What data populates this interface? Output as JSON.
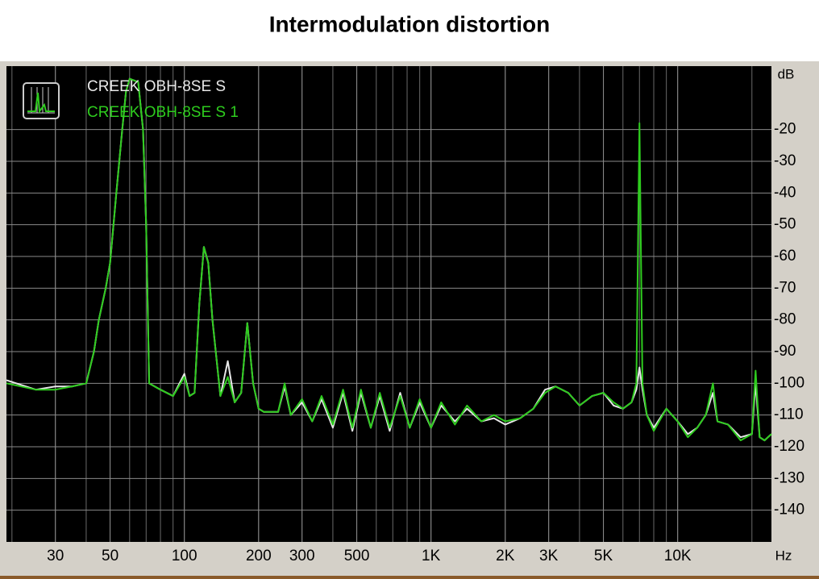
{
  "chart_data": {
    "type": "line",
    "title": "Intermodulation distortion",
    "x_label": "Hz",
    "y_label": "dB",
    "xscale": "log",
    "xlim": [
      19,
      24000
    ],
    "ylim": [
      -150,
      0
    ],
    "xticks": [
      30,
      50,
      100,
      200,
      300,
      500,
      {
        "value": 1000,
        "label": "1K"
      },
      {
        "value": 2000,
        "label": "2K"
      },
      {
        "value": 3000,
        "label": "3K"
      },
      {
        "value": 5000,
        "label": "5K"
      },
      {
        "value": 10000,
        "label": "10K"
      }
    ],
    "yticks": [
      -20,
      -30,
      -40,
      -50,
      -60,
      -70,
      -80,
      -90,
      -100,
      -110,
      -120,
      -130,
      -140
    ],
    "grid": true,
    "legend": "upper left",
    "x": [
      19,
      25,
      30,
      35,
      40,
      43,
      45,
      48,
      50,
      53,
      56,
      58,
      60,
      65,
      68,
      70,
      72,
      80,
      90,
      100,
      105,
      110,
      115,
      120,
      125,
      130,
      140,
      150,
      160,
      170,
      180,
      190,
      200,
      210,
      240,
      255,
      270,
      300,
      330,
      360,
      400,
      440,
      480,
      520,
      570,
      620,
      680,
      750,
      820,
      900,
      1000,
      1100,
      1250,
      1400,
      1600,
      1800,
      2000,
      2300,
      2600,
      2900,
      3200,
      3600,
      4000,
      4500,
      5000,
      5500,
      6000,
      6500,
      6800,
      7000,
      7200,
      7500,
      8000,
      9000,
      10000,
      11000,
      12000,
      13000,
      13900,
      14500,
      16000,
      18000,
      20000,
      20700,
      21500,
      22500,
      24000
    ],
    "series": [
      {
        "name": "CREEK OBH-8SE S",
        "color": "#e8e8e8",
        "values": [
          -99,
          -102,
          -101,
          -101,
          -100,
          -90,
          -80,
          -70,
          -62,
          -40,
          -20,
          -8,
          -4,
          -5,
          -20,
          -50,
          -100,
          -102,
          -104,
          -97,
          -104,
          -103,
          -75,
          -57,
          -62,
          -80,
          -104,
          -93,
          -106,
          -103,
          -81,
          -100,
          -108,
          -109,
          -109,
          -101,
          -110,
          -106,
          -112,
          -105,
          -114,
          -103,
          -115,
          -103,
          -114,
          -104,
          -115,
          -103,
          -114,
          -106,
          -114,
          -107,
          -112,
          -108,
          -112,
          -111,
          -113,
          -111,
          -108,
          -102,
          -101,
          -103,
          -107,
          -104,
          -103,
          -107,
          -108,
          -106,
          -102,
          -95,
          -102,
          -110,
          -114,
          -108,
          -112,
          -116,
          -114,
          -110,
          -103,
          -112,
          -113,
          -117,
          -116,
          -100,
          -117,
          -118,
          -116
        ]
      },
      {
        "name": "CREEK OBH-8SE S 1",
        "color": "#2ecc1e",
        "values": [
          -100,
          -102,
          -102,
          -101,
          -100,
          -90,
          -80,
          -70,
          -62,
          -40,
          -20,
          -8,
          -4,
          -5,
          -20,
          -50,
          -100,
          -102,
          -104,
          -98,
          -104,
          -103,
          -75,
          -57,
          -62,
          -80,
          -104,
          -98,
          -106,
          -103,
          -81,
          -100,
          -108,
          -109,
          -109,
          -100,
          -110,
          -105,
          -112,
          -104,
          -113,
          -102,
          -114,
          -102,
          -114,
          -103,
          -114,
          -104,
          -114,
          -105,
          -114,
          -106,
          -113,
          -107,
          -112,
          -110,
          -112,
          -111,
          -108,
          -103,
          -101,
          -103,
          -107,
          -104,
          -103,
          -106,
          -108,
          -106,
          -100,
          -18,
          -100,
          -110,
          -115,
          -108,
          -112,
          -117,
          -114,
          -110,
          -100,
          -112,
          -113,
          -118,
          -116,
          -96,
          -117,
          -118,
          -116
        ]
      }
    ]
  }
}
